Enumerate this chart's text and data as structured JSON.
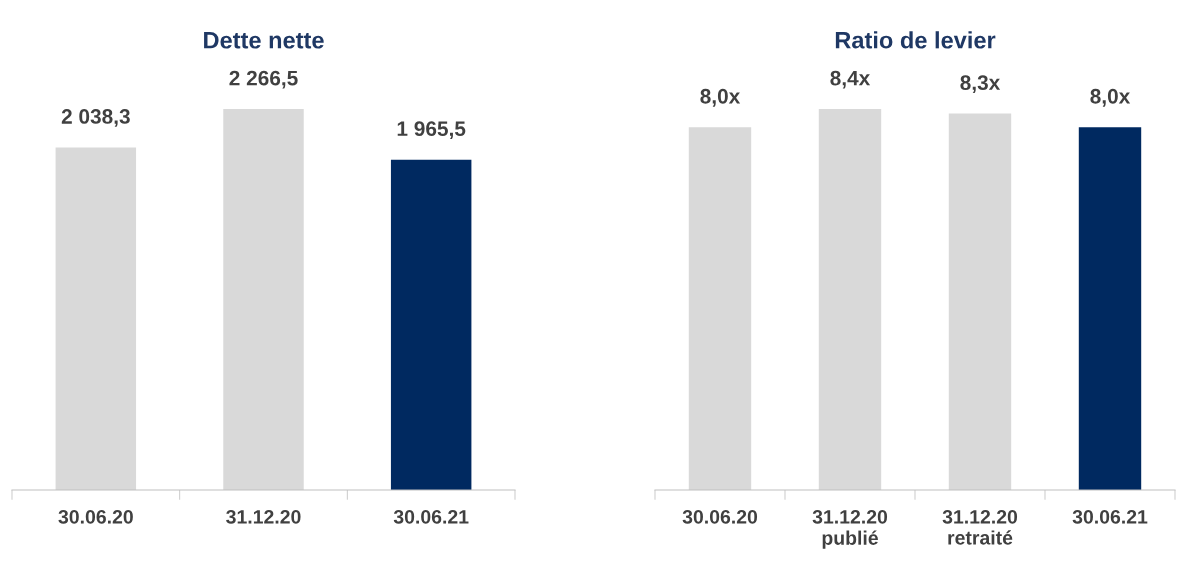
{
  "chart_data": [
    {
      "type": "bar",
      "title": "Dette nette",
      "categories": [
        "30.06.20",
        "31.12.20",
        "30.06.21"
      ],
      "values": [
        2038.3,
        2266.5,
        1965.5
      ],
      "colors": [
        "#d9d9d9",
        "#d9d9d9",
        "#002960"
      ],
      "value_labels": [
        "2 038,3",
        "2 266,5",
        "1 965,5"
      ],
      "tick_labels": "x",
      "grid": false,
      "legend": false
    },
    {
      "type": "bar",
      "title": "Ratio de levier",
      "categories": [
        "30.06.20",
        "31.12.20\npublié",
        "31.12.20\nretraité",
        "30.06.21"
      ],
      "values": [
        8.0,
        8.4,
        8.3,
        8.0
      ],
      "colors": [
        "#d9d9d9",
        "#d9d9d9",
        "#d9d9d9",
        "#002960"
      ],
      "value_labels": [
        "8,0x",
        "8,4x",
        "8,3x",
        "8,0x"
      ],
      "tick_labels": "x",
      "grid": false,
      "legend": false
    }
  ]
}
